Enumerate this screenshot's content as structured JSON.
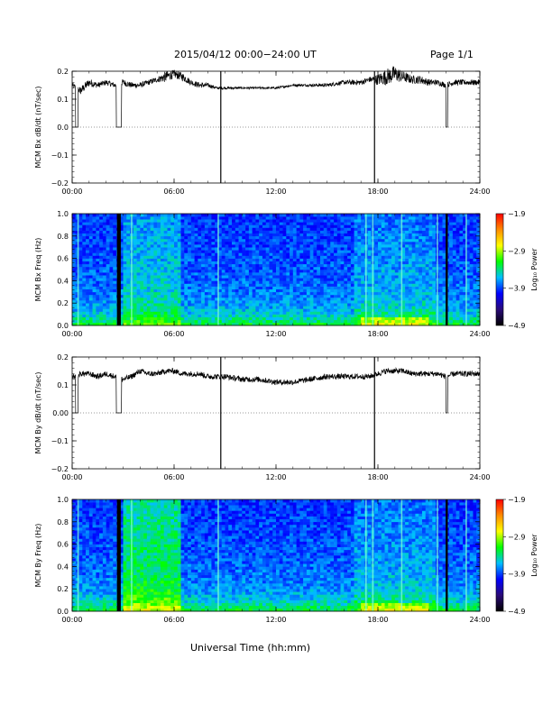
{
  "header": {
    "title": "2015/04/12   00:00−24:00 UT",
    "page": "Page 1/1"
  },
  "footer": {
    "xaxis_title": "Universal Time (hh:mm)"
  },
  "colorbar": {
    "label": "Log₁₀ Power",
    "tick_labels": [
      "−1.9",
      "−2.9",
      "−3.9",
      "−4.9"
    ],
    "range": [
      -4.9,
      -1.9
    ],
    "colors": [
      "#000000",
      "#2a0a78",
      "#0000ff",
      "#00bfff",
      "#00ff00",
      "#ffff00",
      "#ff8c00",
      "#ff0000"
    ]
  },
  "chart_data": [
    {
      "type": "line",
      "ylabel": "MCM Bx dB/dt (nT/sec)",
      "xlim": [
        0,
        24
      ],
      "ylim": [
        -0.2,
        0.2
      ],
      "x_tick_labels": [
        "00:00",
        "06:00",
        "12:00",
        "18:00",
        "24:00"
      ],
      "y_tick_labels": [
        "−0.2",
        "−0.1",
        "0.0",
        "0.1",
        "0.2"
      ],
      "series": [
        {
          "x": [
            0.0,
            0.25,
            0.5,
            1.0,
            1.5,
            2.0,
            2.5,
            3.0,
            3.5,
            4.0,
            4.5,
            5.0,
            5.5,
            6.0,
            6.5,
            7.0,
            7.5,
            8.0,
            8.5,
            9.0,
            10.0,
            11.0,
            12.0,
            13.0,
            14.0,
            15.0,
            16.0,
            17.0,
            17.5,
            18.0,
            18.5,
            19.0,
            19.5,
            20.0,
            20.5,
            21.0,
            21.5,
            22.0,
            22.5,
            23.0,
            23.5,
            24.0
          ],
          "y": [
            0.15,
            0.14,
            0.13,
            0.16,
            0.15,
            0.16,
            0.15,
            0.16,
            0.15,
            0.15,
            0.16,
            0.17,
            0.18,
            0.19,
            0.18,
            0.16,
            0.15,
            0.15,
            0.14,
            0.14,
            0.14,
            0.14,
            0.14,
            0.15,
            0.15,
            0.15,
            0.16,
            0.16,
            0.17,
            0.17,
            0.18,
            0.19,
            0.18,
            0.17,
            0.17,
            0.16,
            0.16,
            0.15,
            0.16,
            0.16,
            0.16,
            0.16
          ],
          "noise": [
            0.01,
            0.01,
            0.015,
            0.015,
            0.01,
            0.01,
            0.01,
            0.012,
            0.01,
            0.01,
            0.01,
            0.01,
            0.02,
            0.015,
            0.015,
            0.01,
            0.01,
            0.008,
            0.005,
            0.005,
            0.004,
            0.004,
            0.004,
            0.004,
            0.005,
            0.006,
            0.008,
            0.01,
            0.01,
            0.02,
            0.03,
            0.03,
            0.02,
            0.015,
            0.015,
            0.012,
            0.01,
            0.01,
            0.01,
            0.01,
            0.01,
            0.01
          ]
        }
      ],
      "gaps": [
        [
          0.2,
          0.35,
          0.0
        ],
        [
          2.6,
          2.9,
          0.0
        ],
        [
          22.0,
          22.1,
          0.0
        ]
      ],
      "spikes": [
        8.75,
        17.8
      ]
    },
    {
      "type": "heatmap",
      "ylabel": "MCM Bx Freq (Hz)",
      "xlim": [
        0,
        24
      ],
      "ylim": [
        0,
        1.0
      ],
      "x_tick_labels": [
        "00:00",
        "06:00",
        "12:00",
        "18:00",
        "24:00"
      ],
      "y_tick_labels": [
        "0.0",
        "0.2",
        "0.4",
        "0.6",
        "0.8",
        "1.0"
      ],
      "zlim": [
        -4.9,
        -1.9
      ],
      "black_columns": [
        2.7,
        2.8,
        22.05
      ],
      "bright_columns": [
        0.35,
        3.5,
        8.6,
        17.3,
        17.7,
        19.4,
        21.5,
        23.2
      ]
    },
    {
      "type": "line",
      "ylabel": "MCM By dB/dt (nT/sec)",
      "xlim": [
        0,
        24
      ],
      "ylim": [
        -0.2,
        0.2
      ],
      "x_tick_labels": [
        "00:00",
        "06:00",
        "12:00",
        "18:00",
        "24:00"
      ],
      "y_tick_labels": [
        "−0.2",
        "−0.1",
        "0.00",
        "0.1",
        "0.2"
      ],
      "series": [
        {
          "x": [
            0.0,
            0.25,
            0.5,
            1.0,
            1.5,
            2.0,
            2.5,
            3.0,
            3.5,
            4.0,
            4.5,
            5.0,
            5.5,
            6.0,
            6.5,
            7.0,
            7.5,
            8.0,
            8.5,
            9.0,
            10.0,
            11.0,
            12.0,
            13.0,
            14.0,
            15.0,
            16.0,
            17.0,
            17.5,
            18.0,
            18.5,
            19.0,
            19.5,
            20.0,
            20.5,
            21.0,
            21.5,
            22.0,
            22.5,
            23.0,
            23.5,
            24.0
          ],
          "y": [
            0.13,
            0.13,
            0.14,
            0.14,
            0.13,
            0.14,
            0.13,
            0.12,
            0.13,
            0.15,
            0.14,
            0.14,
            0.15,
            0.15,
            0.14,
            0.14,
            0.14,
            0.13,
            0.13,
            0.13,
            0.12,
            0.12,
            0.11,
            0.11,
            0.12,
            0.13,
            0.13,
            0.13,
            0.13,
            0.14,
            0.15,
            0.15,
            0.15,
            0.14,
            0.14,
            0.14,
            0.14,
            0.13,
            0.14,
            0.14,
            0.14,
            0.14
          ]
        }
      ],
      "gaps": [
        [
          0.2,
          0.35,
          0.0
        ],
        [
          2.6,
          2.9,
          0.0
        ],
        [
          22.0,
          22.1,
          0.0
        ]
      ],
      "spikes": [
        8.75,
        17.8
      ]
    },
    {
      "type": "heatmap",
      "ylabel": "MCM By Freq (Hz)",
      "xlim": [
        0,
        24
      ],
      "ylim": [
        0,
        1.0
      ],
      "x_tick_labels": [
        "00:00",
        "06:00",
        "12:00",
        "18:00",
        "24:00"
      ],
      "y_tick_labels": [
        "0.0",
        "0.2",
        "0.4",
        "0.6",
        "0.8",
        "1.0"
      ],
      "zlim": [
        -4.9,
        -1.9
      ],
      "black_columns": [
        2.7,
        2.8,
        22.05
      ],
      "bright_columns": [
        0.35,
        3.5,
        8.6,
        17.3,
        17.7,
        19.4,
        21.5,
        23.2
      ]
    }
  ]
}
